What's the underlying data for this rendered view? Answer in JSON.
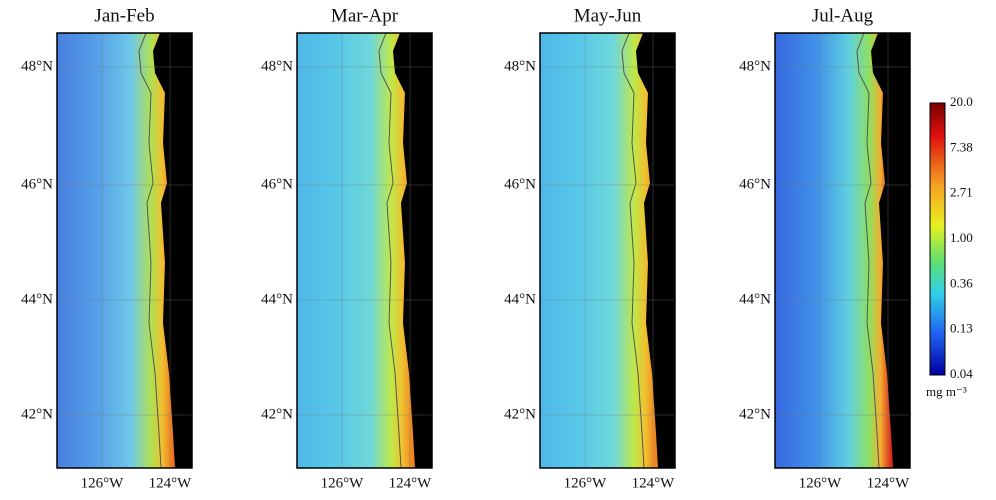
{
  "panels": [
    {
      "title": "Jan-Feb"
    },
    {
      "title": "Mar-Apr"
    },
    {
      "title": "May-Jun"
    },
    {
      "title": "Jul-Aug"
    }
  ],
  "lat_labels": [
    "48°N",
    "46°N",
    "44°N",
    "42°N"
  ],
  "lon_labels": [
    "126°W",
    "124°W"
  ],
  "colorbar": {
    "ticks": [
      "20.0",
      "7.38",
      "2.71",
      "1.00",
      "0.36",
      "0.13",
      "0.04"
    ],
    "unit": "mg m⁻³"
  }
}
